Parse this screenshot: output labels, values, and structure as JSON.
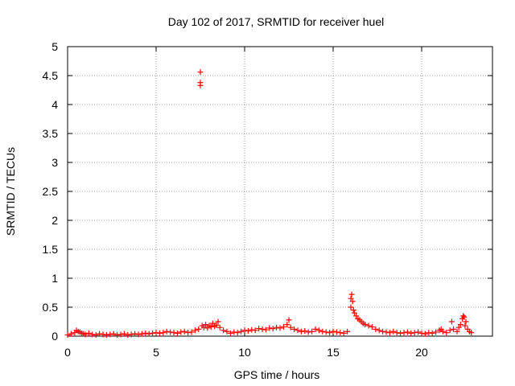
{
  "chart_data": {
    "type": "scatter",
    "title": "Day 102 of 2017, SRMTID for receiver huel",
    "xlabel": "GPS time / hours",
    "ylabel": "SRMTID / TECUs",
    "xlim": [
      0,
      24
    ],
    "ylim": [
      0,
      5
    ],
    "xticks": [
      "0",
      "5",
      "10",
      "15",
      "20"
    ],
    "yticks": [
      "0",
      "0.5",
      "1",
      "1.5",
      "2",
      "2.5",
      "3",
      "3.5",
      "4",
      "4.5",
      "5"
    ],
    "grid": true,
    "marker": "plus",
    "color": "#ff0000",
    "series": [
      {
        "x": [
          0.0,
          0.2,
          0.4,
          0.5,
          0.6,
          0.7,
          0.8,
          0.9,
          1.0,
          1.2,
          1.4,
          1.6,
          1.8,
          2.0,
          2.2,
          2.4,
          2.6,
          2.8,
          3.0,
          3.2,
          3.4,
          3.6,
          3.8,
          4.0,
          4.2,
          4.4,
          4.6,
          4.8,
          5.0,
          5.2,
          5.4,
          5.6,
          5.8,
          6.0,
          6.2,
          6.4,
          6.6,
          6.8,
          7.0,
          7.2,
          7.4,
          7.5,
          7.5,
          7.5,
          7.6,
          7.7,
          7.8,
          7.9,
          8.0,
          8.1,
          8.2,
          8.3,
          8.4,
          8.5,
          8.6,
          8.8,
          9.0,
          9.2,
          9.4,
          9.6,
          9.8,
          10.0,
          10.2,
          10.4,
          10.6,
          10.8,
          11.0,
          11.2,
          11.4,
          11.6,
          11.8,
          12.0,
          12.2,
          12.4,
          12.5,
          12.6,
          12.8,
          13.0,
          13.2,
          13.4,
          13.6,
          13.8,
          14.0,
          14.2,
          14.4,
          14.6,
          14.8,
          15.0,
          15.2,
          15.4,
          15.6,
          15.8,
          16.0,
          16.0,
          16.05,
          16.1,
          16.15,
          16.2,
          16.3,
          16.4,
          16.5,
          16.6,
          16.7,
          16.8,
          17.0,
          17.2,
          17.4,
          17.6,
          17.8,
          18.0,
          18.2,
          18.4,
          18.6,
          18.8,
          19.0,
          19.2,
          19.4,
          19.6,
          19.8,
          20.0,
          20.2,
          20.4,
          20.6,
          20.8,
          21.0,
          21.1,
          21.2,
          21.4,
          21.6,
          21.7,
          21.8,
          22.0,
          22.1,
          22.2,
          22.3,
          22.35,
          22.4,
          22.45,
          22.5,
          22.6,
          22.7,
          22.8
        ],
        "y": [
          0.02,
          0.04,
          0.06,
          0.1,
          0.08,
          0.07,
          0.05,
          0.04,
          0.03,
          0.05,
          0.03,
          0.02,
          0.04,
          0.03,
          0.02,
          0.03,
          0.04,
          0.02,
          0.03,
          0.04,
          0.02,
          0.03,
          0.04,
          0.03,
          0.04,
          0.05,
          0.04,
          0.05,
          0.06,
          0.05,
          0.06,
          0.08,
          0.07,
          0.06,
          0.05,
          0.07,
          0.08,
          0.06,
          0.07,
          0.1,
          0.12,
          4.33,
          4.38,
          4.56,
          0.18,
          0.15,
          0.2,
          0.14,
          0.18,
          0.16,
          0.22,
          0.17,
          0.19,
          0.25,
          0.15,
          0.1,
          0.08,
          0.05,
          0.07,
          0.06,
          0.08,
          0.1,
          0.09,
          0.11,
          0.1,
          0.13,
          0.12,
          0.11,
          0.14,
          0.13,
          0.15,
          0.14,
          0.16,
          0.2,
          0.28,
          0.15,
          0.12,
          0.1,
          0.08,
          0.09,
          0.07,
          0.08,
          0.12,
          0.1,
          0.08,
          0.07,
          0.06,
          0.08,
          0.07,
          0.06,
          0.05,
          0.08,
          0.5,
          0.65,
          0.72,
          0.6,
          0.45,
          0.4,
          0.35,
          0.3,
          0.28,
          0.25,
          0.22,
          0.2,
          0.18,
          0.16,
          0.12,
          0.1,
          0.08,
          0.07,
          0.06,
          0.08,
          0.06,
          0.05,
          0.06,
          0.07,
          0.05,
          0.06,
          0.07,
          0.05,
          0.04,
          0.06,
          0.05,
          0.07,
          0.1,
          0.12,
          0.08,
          0.06,
          0.1,
          0.25,
          0.12,
          0.08,
          0.15,
          0.2,
          0.3,
          0.35,
          0.33,
          0.18,
          0.25,
          0.12,
          0.08,
          0.06
        ]
      }
    ]
  }
}
